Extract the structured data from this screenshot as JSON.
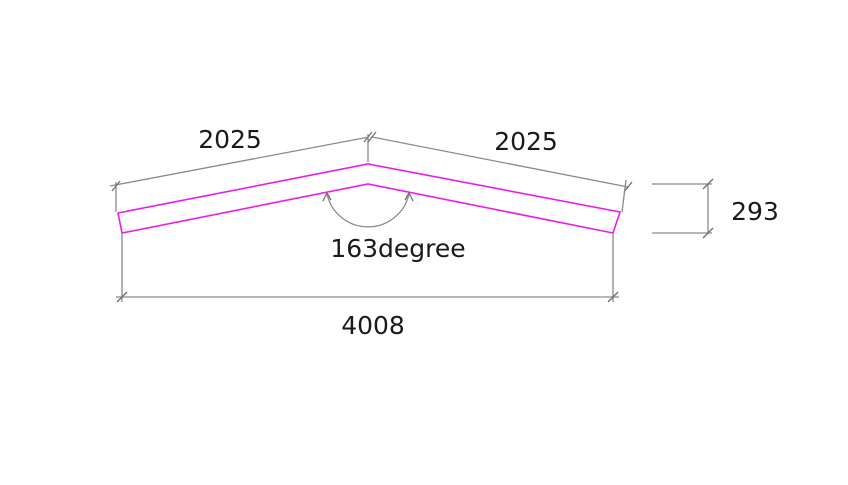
{
  "drawing": {
    "dim_left_slope": "2025",
    "dim_right_slope": "2025",
    "dim_thickness": "293",
    "dim_angle": "163degree",
    "dim_total_span": "4008"
  },
  "colors": {
    "profile": "#e81ee8",
    "dimension_line": "#8a8a8a",
    "text": "#1a1a1a",
    "background": "#ffffff"
  }
}
